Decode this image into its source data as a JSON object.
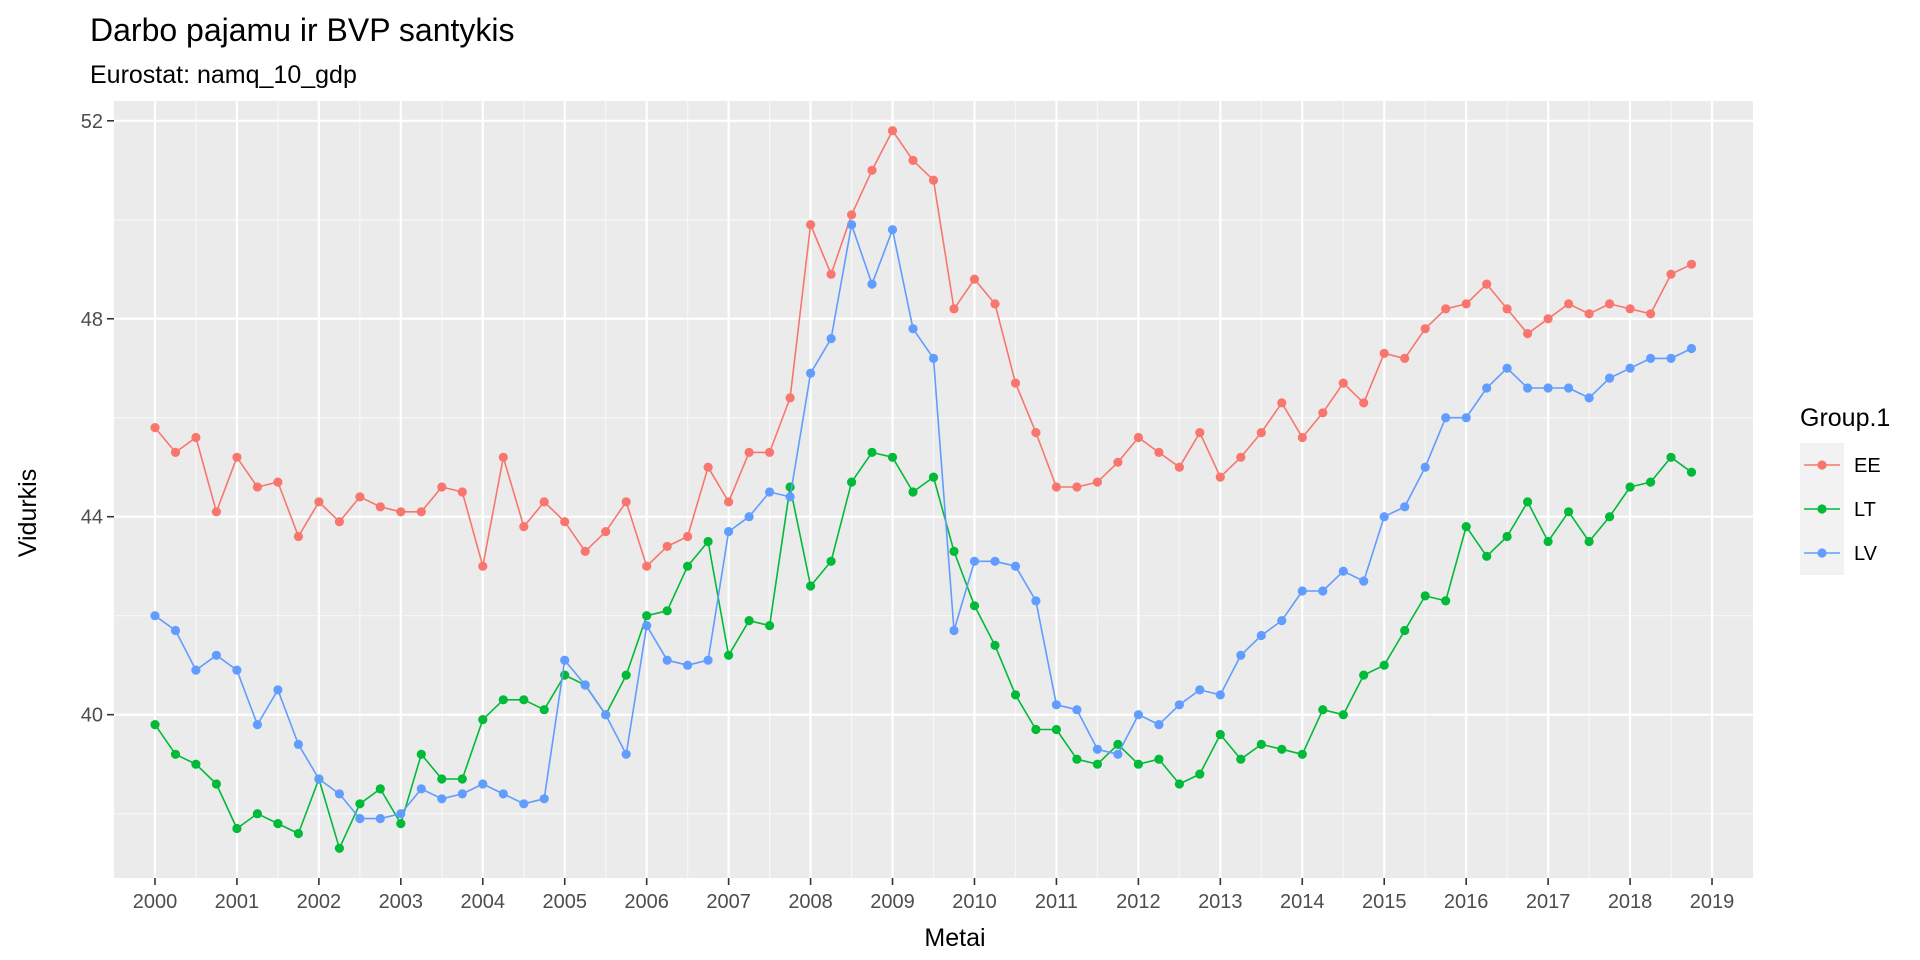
{
  "chart_data": {
    "type": "line",
    "title": "Darbo pajamu ir BVP santykis",
    "subtitle": "Eurostat: namq_10_gdp",
    "xlabel": "Metai",
    "ylabel": "Vidurkis",
    "x_ticks": [
      "2000",
      "2001",
      "2002",
      "2003",
      "2004",
      "2005",
      "2006",
      "2007",
      "2008",
      "2009",
      "2010",
      "2011",
      "2012",
      "2013",
      "2014",
      "2015",
      "2016",
      "2017",
      "2018",
      "2019"
    ],
    "y_ticks": [
      40,
      44,
      48,
      52
    ],
    "xlim": [
      1999.5,
      2019.5
    ],
    "ylim": [
      36.7,
      52.4
    ],
    "grid": true,
    "legend_title": "Group.1",
    "legend_position": "right",
    "x": [
      2000.0,
      2000.25,
      2000.5,
      2000.75,
      2001.0,
      2001.25,
      2001.5,
      2001.75,
      2002.0,
      2002.25,
      2002.5,
      2002.75,
      2003.0,
      2003.25,
      2003.5,
      2003.75,
      2004.0,
      2004.25,
      2004.5,
      2004.75,
      2005.0,
      2005.25,
      2005.5,
      2005.75,
      2006.0,
      2006.25,
      2006.5,
      2006.75,
      2007.0,
      2007.25,
      2007.5,
      2007.75,
      2008.0,
      2008.25,
      2008.5,
      2008.75,
      2009.0,
      2009.25,
      2009.5,
      2009.75,
      2010.0,
      2010.25,
      2010.5,
      2010.75,
      2011.0,
      2011.25,
      2011.5,
      2011.75,
      2012.0,
      2012.25,
      2012.5,
      2012.75,
      2013.0,
      2013.25,
      2013.5,
      2013.75,
      2014.0,
      2014.25,
      2014.5,
      2014.75,
      2015.0,
      2015.25,
      2015.5,
      2015.75,
      2016.0,
      2016.25,
      2016.5,
      2016.75,
      2017.0,
      2017.25,
      2017.5,
      2017.75,
      2018.0,
      2018.25,
      2018.5,
      2018.75
    ],
    "series": [
      {
        "name": "EE",
        "color": "#F8766D",
        "values": [
          45.8,
          45.3,
          45.6,
          44.1,
          45.2,
          44.6,
          44.7,
          43.6,
          44.3,
          43.9,
          44.4,
          44.2,
          44.1,
          44.1,
          44.6,
          44.5,
          43.0,
          45.2,
          43.8,
          44.3,
          43.9,
          43.3,
          43.7,
          44.3,
          43.0,
          43.4,
          43.6,
          45.0,
          44.3,
          45.3,
          45.3,
          46.4,
          49.9,
          48.9,
          50.1,
          51.0,
          51.8,
          51.2,
          50.8,
          48.2,
          48.8,
          48.3,
          46.7,
          45.7,
          44.6,
          44.6,
          44.7,
          45.1,
          45.6,
          45.3,
          45.0,
          45.7,
          44.8,
          45.2,
          45.7,
          46.3,
          45.6,
          46.1,
          46.7,
          46.3,
          47.3,
          47.2,
          47.8,
          48.2,
          48.3,
          48.7,
          48.2,
          47.7,
          48.0,
          48.3,
          48.1,
          48.3,
          48.2,
          48.1,
          48.9,
          49.1
        ]
      },
      {
        "name": "LT",
        "color": "#00BA38",
        "values": [
          39.8,
          39.2,
          39.0,
          38.6,
          37.7,
          38.0,
          37.8,
          37.6,
          38.7,
          37.3,
          38.2,
          38.5,
          37.8,
          39.2,
          38.7,
          38.7,
          39.9,
          40.3,
          40.3,
          40.1,
          40.8,
          40.6,
          40.0,
          40.8,
          42.0,
          42.1,
          43.0,
          43.5,
          41.2,
          41.9,
          41.8,
          44.6,
          42.6,
          43.1,
          44.7,
          45.3,
          45.2,
          44.5,
          44.8,
          43.3,
          42.2,
          41.4,
          40.4,
          39.7,
          39.7,
          39.1,
          39.0,
          39.4,
          39.0,
          39.1,
          38.6,
          38.8,
          39.6,
          39.1,
          39.4,
          39.3,
          39.2,
          40.1,
          40.0,
          40.8,
          41.0,
          41.7,
          42.4,
          42.3,
          43.8,
          43.2,
          43.6,
          44.3,
          43.5,
          44.1,
          43.5,
          44.0,
          44.6,
          44.7,
          45.2,
          44.9
        ]
      },
      {
        "name": "LV",
        "color": "#619CFF",
        "values": [
          42.0,
          41.7,
          40.9,
          41.2,
          40.9,
          39.8,
          40.5,
          39.4,
          38.7,
          38.4,
          37.9,
          37.9,
          38.0,
          38.5,
          38.3,
          38.4,
          38.6,
          38.4,
          38.2,
          38.3,
          41.1,
          40.6,
          40.0,
          39.2,
          41.8,
          41.1,
          41.0,
          41.1,
          43.7,
          44.0,
          44.5,
          44.4,
          46.9,
          47.6,
          49.9,
          48.7,
          49.8,
          47.8,
          47.2,
          41.7,
          43.1,
          43.1,
          43.0,
          42.3,
          40.2,
          40.1,
          39.3,
          39.2,
          40.0,
          39.8,
          40.2,
          40.5,
          40.4,
          41.2,
          41.6,
          41.9,
          42.5,
          42.5,
          42.9,
          42.7,
          44.0,
          44.2,
          45.0,
          46.0,
          46.0,
          46.6,
          47.0,
          46.6,
          46.6,
          46.6,
          46.4,
          46.8,
          47.0,
          47.2,
          47.2,
          47.4
        ]
      }
    ]
  }
}
